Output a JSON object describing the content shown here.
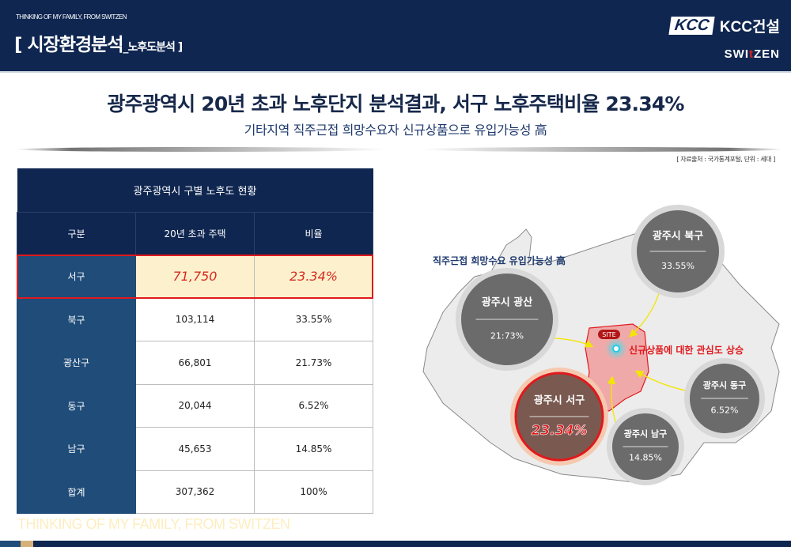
{
  "header": {
    "tagline": "THINKING OF MY FAMILY, FROM SWITZEN",
    "section_title": "[ 시장환경분석",
    "section_sub": "_노후도분석 ]",
    "logo_kcc": "KCC",
    "logo_brand": "KCC건설",
    "logo_switzen_a": "SWI",
    "logo_switzen_t": "t",
    "logo_switzen_b": "ZEN"
  },
  "headline": "광주광역시 20년 초과 노후단지 분석결과, 서구 노후주택비율 23.34%",
  "subheadline": "기타지역 직주근접 희망수요자 신규상품으로 유입가능성 高",
  "source": "[ 자료출처 : 국가통계포털, 단위 : 세대 ]",
  "table": {
    "title": "광주광역시 구별 노후도 현황",
    "headers": [
      "구분",
      "20년 초과 주택",
      "비율"
    ],
    "rows": [
      [
        "서구",
        "71,750",
        "23.34%"
      ],
      [
        "북구",
        "103,114",
        "33.55%"
      ],
      [
        "광산구",
        "66,801",
        "21.73%"
      ],
      [
        "동구",
        "20,044",
        "6.52%"
      ],
      [
        "남구",
        "45,653",
        "14.85%"
      ],
      [
        "합계",
        "307,362",
        "100%"
      ]
    ]
  },
  "map": {
    "note": "직주근접 희망수요 유입가능성 高",
    "site": "SITE",
    "interest": "신규상품에 대한 관심도 상승",
    "districts": [
      {
        "name": "광주시 북구",
        "pct": "33.55%"
      },
      {
        "name": "광주시 광산",
        "pct": "21:73%"
      },
      {
        "name": "광주시 서구",
        "pct": "23.34%"
      },
      {
        "name": "광주시 동구",
        "pct": "6.52%"
      },
      {
        "name": "광주시 남구",
        "pct": "14.85%"
      }
    ]
  },
  "watermark": "THINKING OF MY FAMILY, FROM SWITZEN",
  "colors": {
    "navy": "#0f2650",
    "highlight": "#e0191d",
    "gold": "#d6b27a"
  }
}
